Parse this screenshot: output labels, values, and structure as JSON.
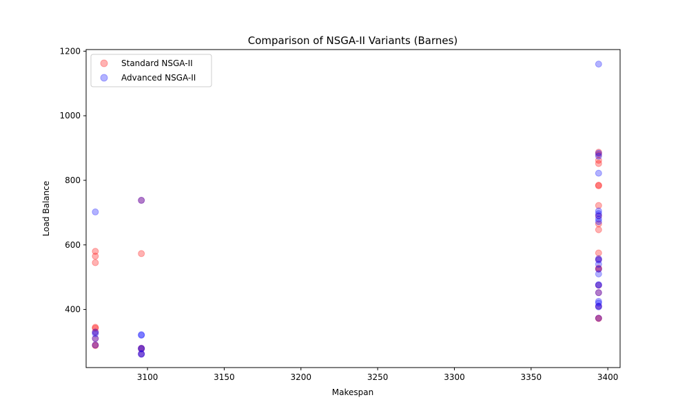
{
  "chart_data": {
    "type": "scatter",
    "title": "Comparison of NSGA-II Variants (Barnes)",
    "xlabel": "Makespan",
    "ylabel": "Load Balance",
    "xlim": [
      3060,
      3408
    ],
    "ylim": [
      220,
      1205
    ],
    "xticks": [
      3100,
      3150,
      3200,
      3250,
      3300,
      3350,
      3400
    ],
    "yticks": [
      400,
      600,
      800,
      1000,
      1200
    ],
    "grid": false,
    "legend_position": "top-left",
    "series": [
      {
        "name": "Standard NSGA-II",
        "color": "#ff0000",
        "alpha": 0.3,
        "points": [
          [
            3066,
            580
          ],
          [
            3066,
            565
          ],
          [
            3066,
            545
          ],
          [
            3066,
            345
          ],
          [
            3066,
            342
          ],
          [
            3066,
            330
          ],
          [
            3066,
            310
          ],
          [
            3066,
            290
          ],
          [
            3066,
            288
          ],
          [
            3096,
            738
          ],
          [
            3096,
            573
          ],
          [
            3096,
            280
          ],
          [
            3096,
            278
          ],
          [
            3096,
            262
          ],
          [
            3394,
            887
          ],
          [
            3394,
            880
          ],
          [
            3394,
            862
          ],
          [
            3394,
            852
          ],
          [
            3394,
            785
          ],
          [
            3394,
            783
          ],
          [
            3394,
            722
          ],
          [
            3394,
            690
          ],
          [
            3394,
            665
          ],
          [
            3394,
            647
          ],
          [
            3394,
            575
          ],
          [
            3394,
            555
          ],
          [
            3394,
            528
          ],
          [
            3394,
            525
          ],
          [
            3394,
            475
          ],
          [
            3394,
            452
          ],
          [
            3394,
            410
          ],
          [
            3394,
            373
          ],
          [
            3394,
            372
          ]
        ]
      },
      {
        "name": "Advanced NSGA-II",
        "color": "#0000ff",
        "alpha": 0.3,
        "points": [
          [
            3066,
            702
          ],
          [
            3066,
            330
          ],
          [
            3066,
            325
          ],
          [
            3066,
            310
          ],
          [
            3066,
            290
          ],
          [
            3096,
            738
          ],
          [
            3096,
            322
          ],
          [
            3096,
            320
          ],
          [
            3096,
            280
          ],
          [
            3096,
            278
          ],
          [
            3096,
            263
          ],
          [
            3096,
            261
          ],
          [
            3394,
            1160
          ],
          [
            3394,
            884
          ],
          [
            3394,
            875
          ],
          [
            3394,
            822
          ],
          [
            3394,
            705
          ],
          [
            3394,
            697
          ],
          [
            3394,
            690
          ],
          [
            3394,
            680
          ],
          [
            3394,
            672
          ],
          [
            3394,
            557
          ],
          [
            3394,
            553
          ],
          [
            3394,
            540
          ],
          [
            3394,
            525
          ],
          [
            3394,
            510
          ],
          [
            3394,
            477
          ],
          [
            3394,
            475
          ],
          [
            3394,
            452
          ],
          [
            3394,
            425
          ],
          [
            3394,
            420
          ],
          [
            3394,
            410
          ],
          [
            3394,
            408
          ],
          [
            3394,
            373
          ]
        ]
      }
    ]
  }
}
